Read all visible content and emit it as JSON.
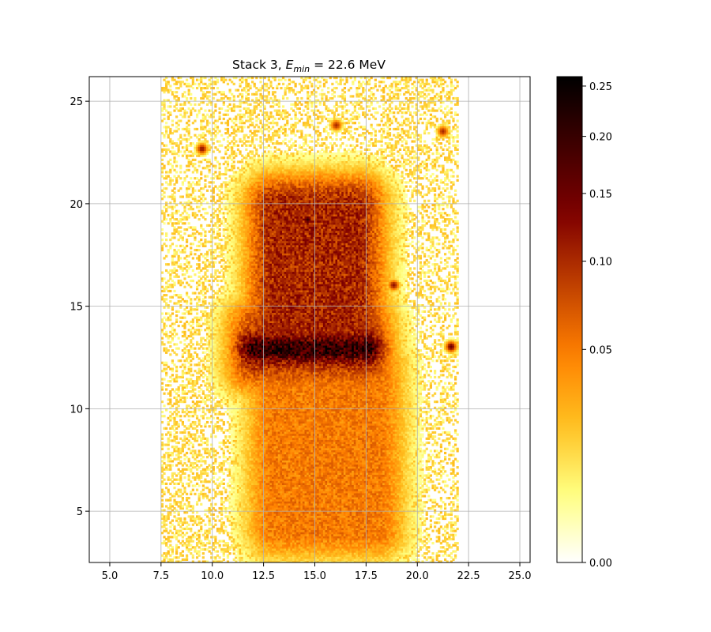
{
  "chart_data": {
    "type": "heatmap",
    "title": {
      "prefix": "Stack 3, ",
      "symbol": "E",
      "subscript": "min",
      "suffix": " = 22.6 MeV"
    },
    "xlabel": "",
    "ylabel": "",
    "xlim": [
      4.0,
      25.5
    ],
    "ylim": [
      2.5,
      26.2
    ],
    "x_ticks": [
      5.0,
      7.5,
      10.0,
      12.5,
      15.0,
      17.5,
      20.0,
      22.5,
      25.0
    ],
    "x_tick_labels": [
      "5.0",
      "7.5",
      "10.0",
      "12.5",
      "15.0",
      "17.5",
      "20.0",
      "22.5",
      "25.0"
    ],
    "y_ticks": [
      5,
      10,
      15,
      20,
      25
    ],
    "y_tick_labels": [
      "5",
      "10",
      "15",
      "20",
      "25"
    ],
    "grid": true,
    "colormap": "afmhot_r",
    "colorbar": {
      "range": [
        0.0,
        0.26
      ],
      "scale": "sqrt",
      "ticks": [
        0.0,
        0.05,
        0.1,
        0.15,
        0.2,
        0.25
      ],
      "tick_labels": [
        "0.00",
        "0.05",
        "0.10",
        "0.15",
        "0.20",
        "0.25"
      ],
      "colors": [
        "#ffffff",
        "#ffff80",
        "#ffbf1f",
        "#ff8000",
        "#c04000",
        "#800000",
        "#400000",
        "#000000"
      ]
    },
    "data_extent": {
      "x": [
        7.5,
        22.0
      ],
      "y": [
        2.5,
        26.2
      ]
    },
    "features": [
      {
        "label": "central band",
        "x": [
          12.0,
          17.5
        ],
        "y": [
          12.0,
          14.0
        ],
        "peak_value": 0.25
      },
      {
        "label": "upper column",
        "x": [
          13.0,
          17.0
        ],
        "y": [
          14.0,
          20.0
        ],
        "peak_value": 0.12
      },
      {
        "label": "lower body",
        "x": [
          13.0,
          18.0
        ],
        "y": [
          4.0,
          12.0
        ],
        "peak_value": 0.06
      },
      {
        "label": "hotspot",
        "x": [
          14.5,
          14.7
        ],
        "y": [
          19.0,
          19.4
        ],
        "peak_value": 0.2
      },
      {
        "label": "hotspot",
        "x": [
          15.8,
          16.2
        ],
        "y": [
          23.6,
          24.0
        ],
        "peak_value": 0.1
      },
      {
        "label": "hotspot",
        "x": [
          9.3,
          9.6
        ],
        "y": [
          22.5,
          22.8
        ],
        "peak_value": 0.12
      },
      {
        "label": "hotspot",
        "x": [
          21.1,
          21.3
        ],
        "y": [
          23.4,
          23.6
        ],
        "peak_value": 0.1
      },
      {
        "label": "hotspot",
        "x": [
          21.5,
          21.7
        ],
        "y": [
          12.9,
          13.1
        ],
        "peak_value": 0.15
      },
      {
        "label": "hotspot",
        "x": [
          18.7,
          18.9
        ],
        "y": [
          15.9,
          16.1
        ],
        "peak_value": 0.12
      }
    ]
  }
}
